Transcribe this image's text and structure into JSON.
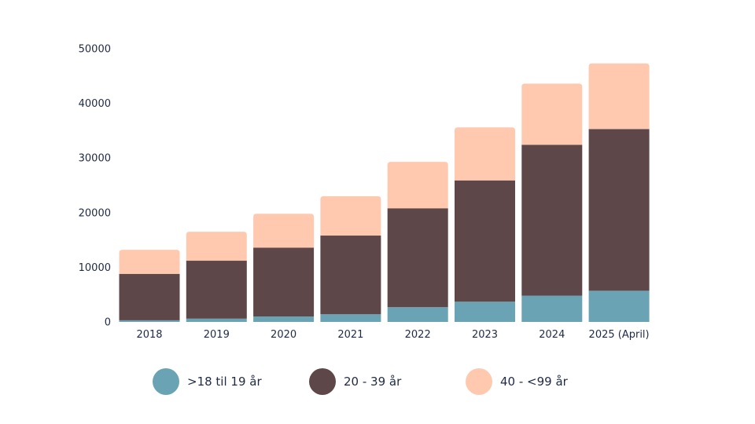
{
  "chart_data": {
    "type": "bar",
    "stacked": true,
    "categories": [
      "2018",
      "2019",
      "2020",
      "2021",
      "2022",
      "2023",
      "2024",
      "2025 (April)"
    ],
    "series": [
      {
        "name": ">18 til 19 år",
        "color": "#6aa3b4",
        "values": [
          300,
          600,
          1000,
          1400,
          2700,
          3700,
          4800,
          5700
        ]
      },
      {
        "name": "20 - 39 år",
        "color": "#5e4749",
        "values": [
          8500,
          10600,
          12600,
          14400,
          18100,
          22200,
          27600,
          29600
        ]
      },
      {
        "name": "40 - <99 år",
        "color": "#ffc9b0",
        "values": [
          4400,
          5300,
          6200,
          7200,
          8500,
          9700,
          11200,
          12000
        ]
      }
    ],
    "yticks": [
      0,
      10000,
      20000,
      30000,
      40000,
      50000
    ],
    "ylim": [
      0,
      50000
    ],
    "title": "",
    "xlabel": "",
    "ylabel": "",
    "grid": false,
    "legend_position": "bottom"
  }
}
